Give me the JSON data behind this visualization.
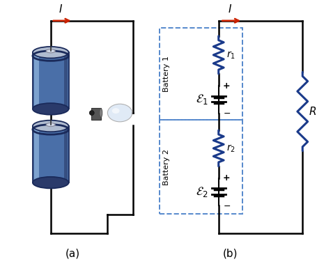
{
  "fig_width": 4.56,
  "fig_height": 3.79,
  "bg_color": "#ffffff",
  "wire_color": "#000000",
  "wire_lw": 1.8,
  "resistor_color": "#1a3a8a",
  "battery_line_color": "#000000",
  "dashed_box_color": "#5588cc",
  "arrow_color": "#cc2200",
  "label_a": "(a)",
  "label_b": "(b)",
  "current_label": "I",
  "r1_label": "r",
  "r2_label": "r",
  "eps1_label": "ε",
  "eps2_label": "ε",
  "R_label": "R",
  "bat1_label": "Battery 1",
  "bat2_label": "Battery 2"
}
